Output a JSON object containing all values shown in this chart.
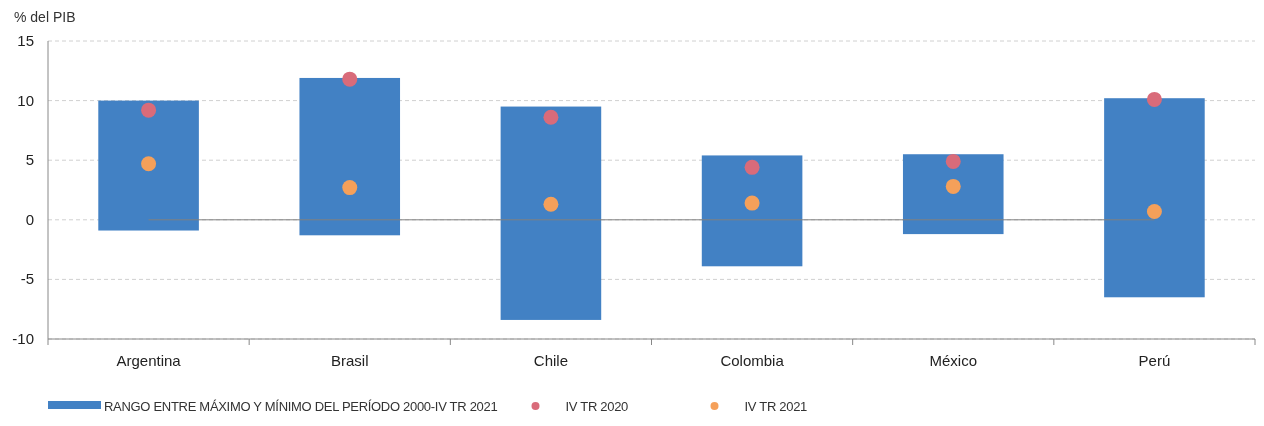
{
  "chart_data": {
    "type": "bar",
    "ylabel": "% del PIB",
    "categories": [
      "Argentina",
      "Brasil",
      "Chile",
      "Colombia",
      "México",
      "Perú"
    ],
    "ylim": [
      -10,
      15
    ],
    "yticks": [
      -10,
      -5,
      0,
      5,
      10,
      15
    ],
    "grid": "y",
    "legend": "bottom left",
    "ref_lines": [
      {
        "axis": "y",
        "value": 0,
        "color": "#808080"
      }
    ],
    "series": [
      {
        "name": "RANGO ENTRE MÁXIMO Y MÍNIMO DEL PERÍODO 2000-IV TR 2021",
        "color": "#4281c4",
        "base": [
          -0.9,
          -1.3,
          -8.4,
          -3.9,
          -1.2,
          -6.5
        ],
        "values": [
          10.9,
          13.2,
          17.9,
          9.3,
          6.7,
          16.7
        ]
      },
      {
        "name": "IV TR 2020",
        "type": "scatter",
        "color": "#d96b7a",
        "marker": "circle",
        "x": [
          "Argentina",
          "Brasil",
          "Chile",
          "Colombia",
          "México",
          "Perú"
        ],
        "values": [
          9.2,
          11.8,
          8.6,
          4.4,
          4.9,
          10.1
        ]
      },
      {
        "name": "IV TR 2021",
        "type": "scatter",
        "color": "#f5a05a",
        "marker": "circle",
        "x": [
          "Argentina",
          "Brasil",
          "Chile",
          "Colombia",
          "México",
          "Perú"
        ],
        "values": [
          4.7,
          2.7,
          1.3,
          1.4,
          2.8,
          0.7
        ]
      }
    ]
  }
}
